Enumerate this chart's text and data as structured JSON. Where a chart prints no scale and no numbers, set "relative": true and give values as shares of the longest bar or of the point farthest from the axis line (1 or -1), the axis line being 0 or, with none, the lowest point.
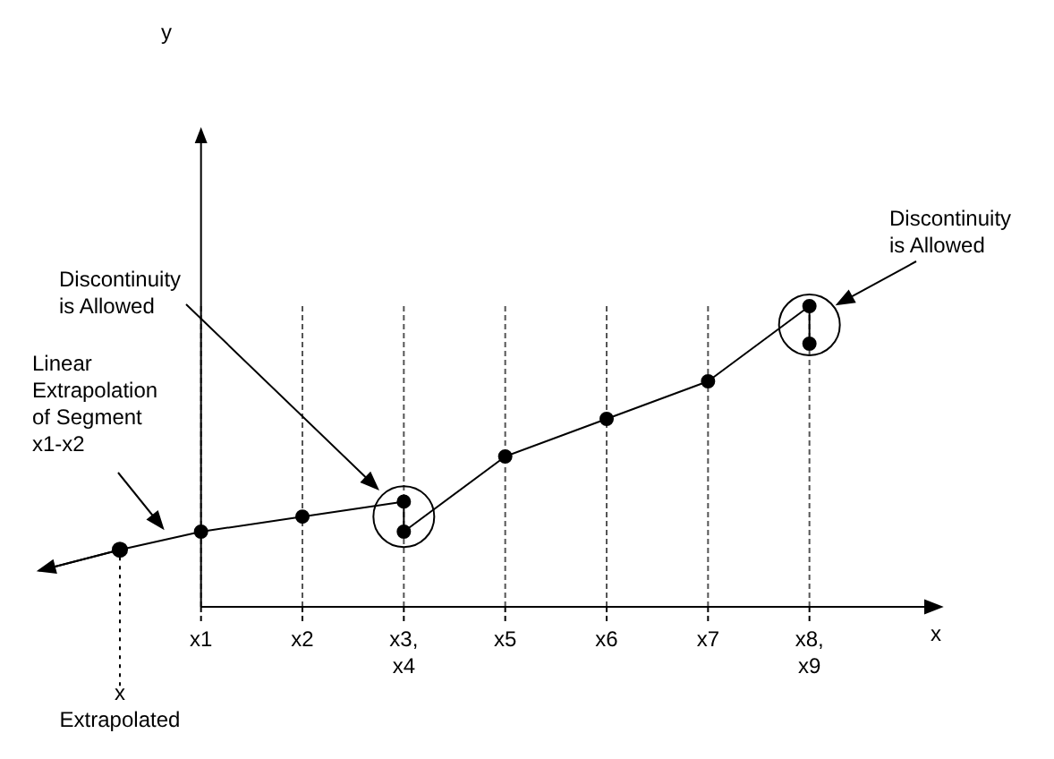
{
  "chart_data": {
    "type": "line",
    "relative": true,
    "xlabel": "x",
    "categories": [
      null,
      null,
      null,
      null,
      null,
      null,
      null,
      null,
      "x1",
      null,
      null,
      null,
      null,
      "x2",
      null,
      null,
      null,
      null,
      "x3, x4",
      null,
      null,
      null,
      null,
      "x5",
      null,
      null,
      null,
      null,
      "x6",
      null,
      null,
      null,
      null,
      "x7",
      null,
      null,
      null,
      null,
      "x8, x9",
      null,
      null,
      null,
      null,
      null,
      null
    ],
    "grid": "x",
    "marker": "circle",
    "line_style": "solid",
    "series": [
      {
        "color": "#000000",
        "x": [
          "x1",
          "x2",
          "x3, x4",
          "x3, x4",
          "x5",
          "x6",
          "x7",
          "x8, x9",
          "x8, x9"
        ],
        "values": [
          0.25,
          0.3,
          0.35,
          0.25,
          0.5,
          0.625,
          0.75,
          1,
          0.875
        ]
      },
      {
        "color": "#000000",
        "marker": "none",
        "values": [
          0.12,
          null,
          null,
          null,
          0.19,
          null,
          null,
          null,
          0.25,
          null,
          null,
          null,
          null,
          null,
          null,
          null,
          null,
          null,
          null,
          null,
          null,
          null,
          null,
          null,
          null,
          null,
          null,
          null,
          null,
          null,
          null,
          null,
          null,
          null,
          null,
          null,
          null,
          null,
          null,
          null,
          null,
          null,
          null,
          null,
          null
        ]
      },
      {
        "type": "scatter",
        "color": "#000000",
        "values": [
          null,
          null,
          null,
          null,
          0.19,
          null,
          null,
          null,
          null,
          null,
          null,
          null,
          null,
          null,
          null,
          null,
          null,
          null,
          null,
          null,
          null,
          null,
          null,
          null,
          null,
          null,
          null,
          null,
          null,
          null,
          null,
          null,
          null,
          null,
          null,
          null,
          null,
          null,
          null,
          null,
          null,
          null,
          null,
          null,
          null
        ]
      }
    ],
    "annotations": [
      "Linear Extrapolation of Segment x1-x2",
      "Discontinuity is Allowed",
      "Discontinuity is Allowed",
      "x Extrapolated",
      "y"
    ]
  }
}
